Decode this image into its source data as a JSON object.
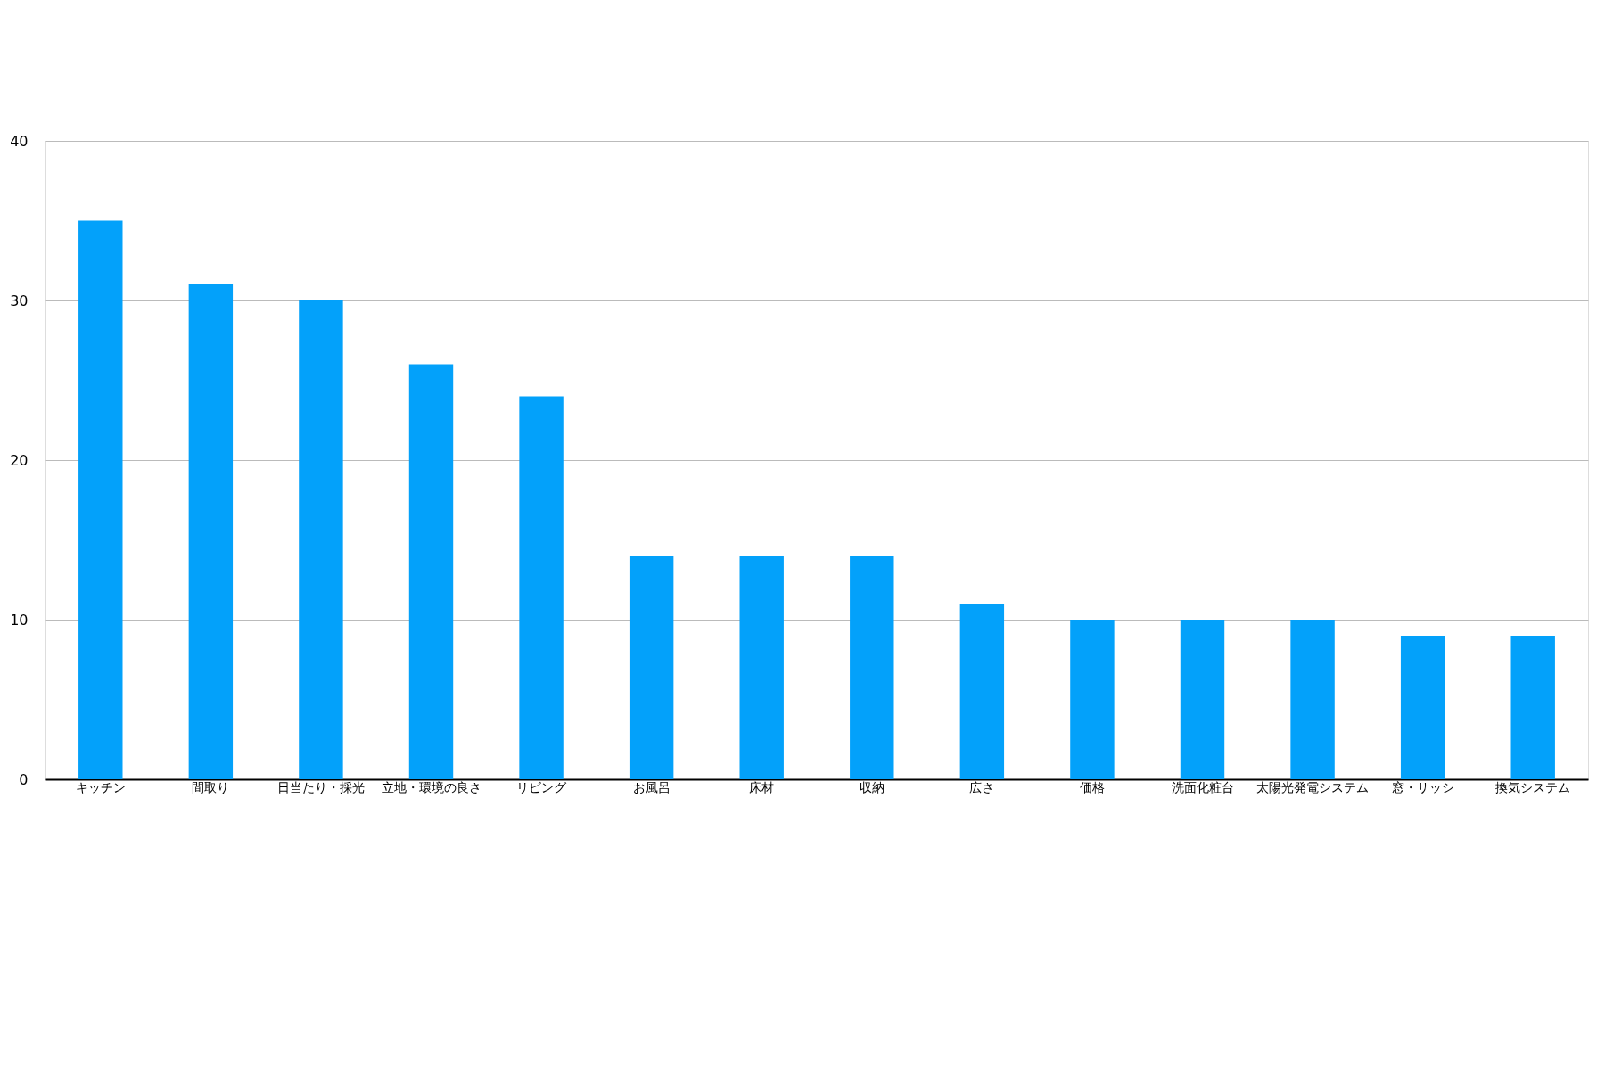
{
  "chart_data": {
    "type": "bar",
    "categories": [
      "キッチン",
      "間取り",
      "日当たり・採光",
      "立地・環境の良さ",
      "リビング",
      "お風呂",
      "床材",
      "収納",
      "広さ",
      "価格",
      "洗面化粧台",
      "太陽光発電システム",
      "窓・サッシ",
      "換気システム"
    ],
    "values": [
      35,
      31,
      30,
      26,
      24,
      14,
      14,
      14,
      11,
      10,
      10,
      10,
      9,
      9
    ],
    "color": "#03a1fa",
    "ylim": [
      0,
      40
    ],
    "yticks": [
      0,
      10,
      20,
      30,
      40
    ],
    "grid": "y"
  }
}
